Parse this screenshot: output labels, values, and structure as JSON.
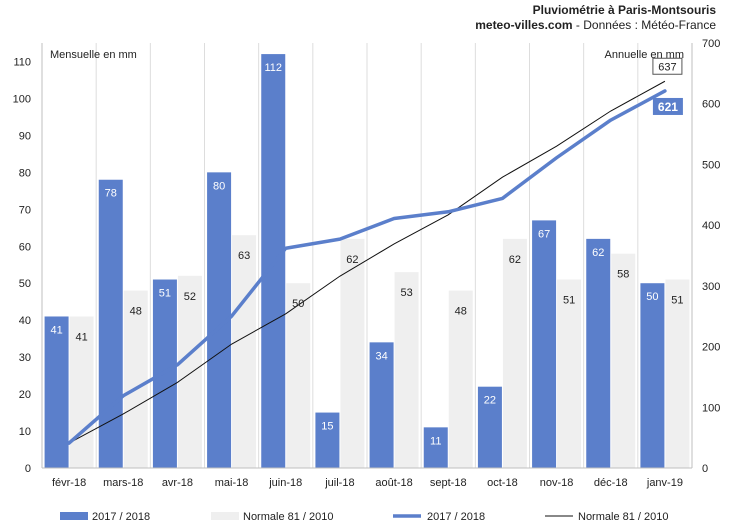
{
  "header": {
    "title": "Pluviométrie à Paris-Montsouris",
    "site": "meteo-villes.com",
    "source": " - Données : Météo-France"
  },
  "chart_data": {
    "type": "bar",
    "categories": [
      "févr-18",
      "mars-18",
      "avr-18",
      "mai-18",
      "juin-18",
      "juil-18",
      "août-18",
      "sept-18",
      "oct-18",
      "nov-18",
      "déc-18",
      "janv-19"
    ],
    "series": [
      {
        "name": "2017 / 2018",
        "kind": "bar",
        "axis": "left",
        "color": "#5b7fcb",
        "values": [
          41,
          78,
          51,
          80,
          112,
          15,
          34,
          11,
          22,
          67,
          62,
          50
        ]
      },
      {
        "name": "Normale 81 / 2010",
        "kind": "bar",
        "axis": "left",
        "color": "#efefef",
        "values": [
          41,
          48,
          52,
          63,
          50,
          62,
          53,
          48,
          62,
          51,
          58,
          51
        ]
      },
      {
        "name": "2017 / 2018",
        "kind": "line",
        "axis": "right",
        "color": "#5b7fcb",
        "values": [
          41,
          119,
          170,
          250,
          362,
          377,
          411,
          422,
          444,
          511,
          573,
          621
        ]
      },
      {
        "name": "Normale 81 / 2010",
        "kind": "line",
        "axis": "right",
        "color": "#111111",
        "values": [
          41,
          89,
          141,
          204,
          254,
          316,
          369,
          417,
          479,
          530,
          588,
          637
        ]
      }
    ],
    "left_axis": {
      "label": "Mensuelle en mm",
      "range": [
        0,
        115
      ],
      "ticks": [
        0,
        10,
        20,
        30,
        40,
        50,
        60,
        70,
        80,
        90,
        100,
        110
      ]
    },
    "right_axis": {
      "label": "Annuelle en mm",
      "range": [
        0,
        700
      ],
      "ticks": [
        0,
        100,
        200,
        300,
        400,
        500,
        600,
        700
      ]
    },
    "end_labels": {
      "normal": "637",
      "current": "621"
    },
    "grid": "vertical",
    "legend": "bottom"
  }
}
